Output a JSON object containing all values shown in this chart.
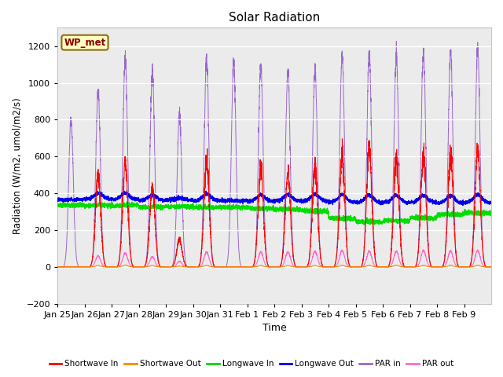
{
  "title": "Solar Radiation",
  "ylabel": "Radiation (W/m2, umol/m2/s)",
  "xlabel": "Time",
  "ylim": [
    -200,
    1300
  ],
  "yticks": [
    -200,
    0,
    200,
    400,
    600,
    800,
    1000,
    1200
  ],
  "fig_bg_color": "#ffffff",
  "plot_bg_color": "#ebebeb",
  "box_label": "WP_met",
  "box_facecolor": "#ffffc0",
  "box_edgecolor": "#8b6914",
  "n_days": 16,
  "day_labels": [
    "Jan 25",
    "Jan 26",
    "Jan 27",
    "Jan 28",
    "Jan 29",
    "Jan 30",
    "Jan 31",
    "Feb 1",
    "Feb 2",
    "Feb 3",
    "Feb 4",
    "Feb 5",
    "Feb 6",
    "Feb 7",
    "Feb 8",
    "Feb 9"
  ],
  "series": {
    "shortwave_in": {
      "color": "#ff0000"
    },
    "shortwave_out": {
      "color": "#ff8800"
    },
    "longwave_in": {
      "color": "#00dd00"
    },
    "longwave_out": {
      "color": "#0000ee"
    },
    "par_in": {
      "color": "#9966cc"
    },
    "par_out": {
      "color": "#ff66cc"
    }
  },
  "legend": [
    {
      "label": "Shortwave In",
      "color": "#ff0000"
    },
    {
      "label": "Shortwave Out",
      "color": "#ff8800"
    },
    {
      "label": "Longwave In",
      "color": "#00dd00"
    },
    {
      "label": "Longwave Out",
      "color": "#0000ee"
    },
    {
      "label": "PAR in",
      "color": "#9966cc"
    },
    {
      "label": "PAR out",
      "color": "#ff66cc"
    }
  ]
}
